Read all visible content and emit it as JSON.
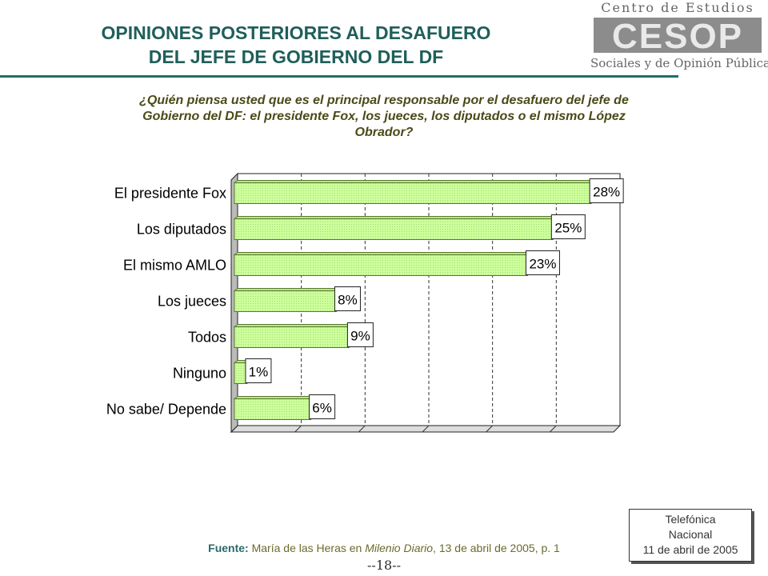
{
  "header": {
    "title_line1": "OPINIONES POSTERIORES AL DESAFUERO",
    "title_line2": "DEL JEFE DE GOBIERNO DEL DF"
  },
  "logo": {
    "top_text": "Centro de Estudios",
    "mark_text": "CESOP",
    "bottom_text": "Sociales y de Opinión Pública",
    "color": "#7a7a7a"
  },
  "question": "¿Quién piensa usted que es el principal responsable por el desafuero del jefe de Gobierno del DF: el presidente Fox, los jueces, los diputados o el mismo López Obrador?",
  "chart_data": {
    "type": "bar",
    "orientation": "horizontal",
    "categories": [
      "El presidente Fox",
      "Los diputados",
      "El mismo AMLO",
      "Los jueces",
      "Todos",
      "Ninguno",
      "No sabe/ Depende"
    ],
    "values": [
      28,
      25,
      23,
      8,
      9,
      1,
      6
    ],
    "data_labels": [
      "28%",
      "25%",
      "23%",
      "8%",
      "9%",
      "1%",
      "6%"
    ],
    "xlim": [
      0,
      30
    ],
    "grid": true,
    "bar_color": "#ccff99",
    "bar_edge_color": "#5a7a2a"
  },
  "source": {
    "label": "Fuente:",
    "text_before": " María de las Heras en ",
    "publication": "Milenio Diario",
    "text_after": ", 13 de abril de 2005, p. 1"
  },
  "page_number": "--18--",
  "survey_box": {
    "line1": "Telefónica",
    "line2": "Nacional",
    "line3": "11  de abril de 2005"
  }
}
